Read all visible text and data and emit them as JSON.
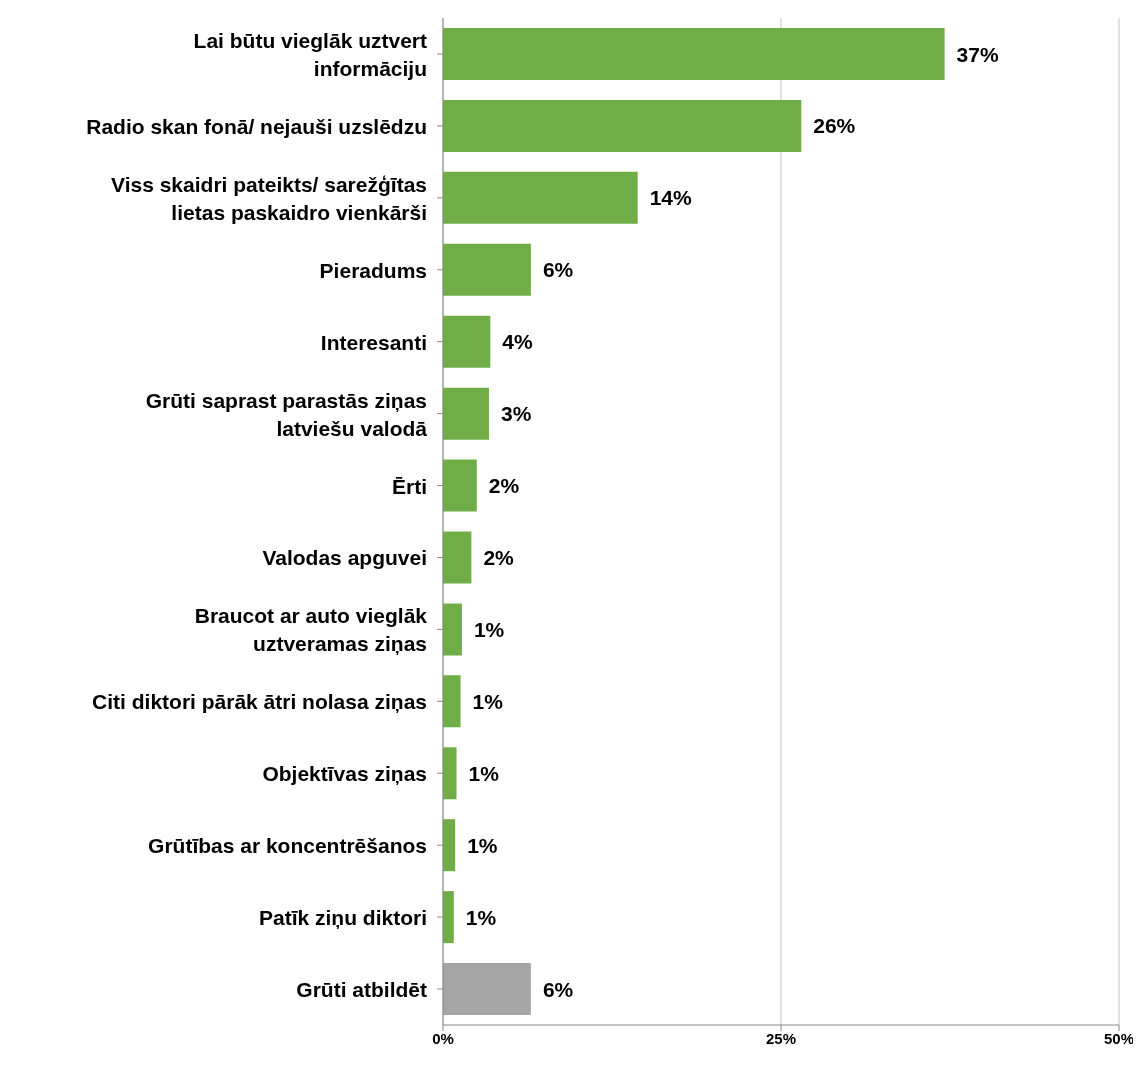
{
  "chart_data": {
    "type": "bar",
    "orientation": "horizontal",
    "categories": [
      "Lai būtu vieglāk uztvert informāciju",
      "Radio skan fonā/ nejauši uzslēdzu",
      "Viss skaidri pateikts/ sarežģītas lietas paskaidro vienkārši",
      "Pieradums",
      "Interesanti",
      "Grūti saprast parastās ziņas latviešu valodā",
      "Ērti",
      "Valodas apguvei",
      "Braucot ar auto vieglāk uztveramas ziņas",
      "Citi diktori pārāk ātri nolasa ziņas",
      "Objektīvas ziņas",
      "Grūtības ar koncentrēšanos",
      "Patīk ziņu diktori",
      "Grūti atbildēt"
    ],
    "values": [
      37.1,
      26.5,
      14.4,
      6.5,
      3.5,
      3.4,
      2.5,
      2.1,
      1.4,
      1.3,
      1.0,
      0.9,
      0.8,
      6.5
    ],
    "value_labels": [
      "37%",
      "26%",
      "14%",
      "6%",
      "4%",
      "3%",
      "2%",
      "2%",
      "1%",
      "1%",
      "1%",
      "1%",
      "1%",
      "6%"
    ],
    "colors": [
      "#70ad47",
      "#70ad47",
      "#70ad47",
      "#70ad47",
      "#70ad47",
      "#70ad47",
      "#70ad47",
      "#70ad47",
      "#70ad47",
      "#70ad47",
      "#70ad47",
      "#70ad47",
      "#70ad47",
      "#a5a5a5"
    ],
    "xlim": [
      0,
      50
    ],
    "xticks": [
      {
        "value": 0,
        "label": "0%"
      },
      {
        "value": 25,
        "label": "25%"
      },
      {
        "value": 50,
        "label": "50%"
      }
    ],
    "grid": "x"
  }
}
